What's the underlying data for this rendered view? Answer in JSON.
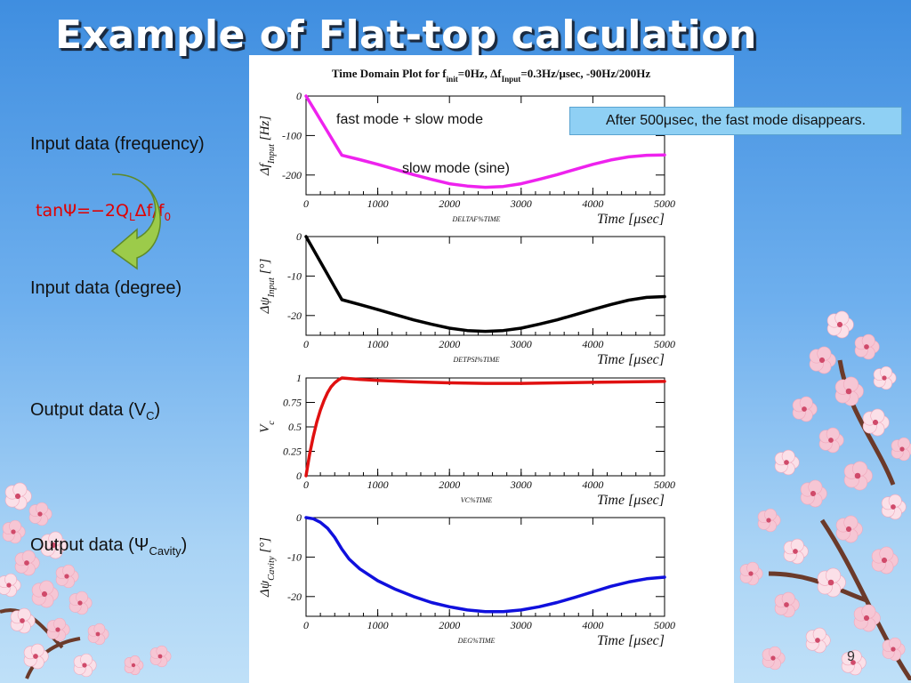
{
  "slide": {
    "title": "Example of Flat-top calculation",
    "page_number": "9",
    "labels": {
      "input_frequency": "Input data (frequency)",
      "input_degree": "Input data (degree)",
      "output_vc": "Output data (V",
      "output_vc_sub": "C",
      "output_vc_close": ")",
      "output_psi": "Output data (Ψ",
      "output_psi_sub": "Cavity",
      "output_psi_close": ")"
    },
    "equation": {
      "main": "tanΨ=−2Q",
      "sub_L": "L",
      "mid": "Δf/f",
      "sub_0": "0"
    },
    "annotations": {
      "fast_slow": "fast mode + slow mode",
      "slow": "slow mode (sine)",
      "callout": "After 500μsec, the fast mode disappears."
    },
    "colors": {
      "accent_title": "#ffffff",
      "equation": "#e00000",
      "callout_bg": "#8fd0f4",
      "arrow_green": "#9ccb4a"
    }
  },
  "chart_data": [
    {
      "type": "line",
      "title": "Time Domain Plot for f",
      "title_sub": "init",
      "title_mid": "=0Hz, Δf",
      "title_sub2": "Input",
      "title_tail": "=0.3Hz/μsec, -90Hz/200Hz",
      "ylabel": "Δf",
      "ylabel_sub": "Input",
      "ylabel_unit": " [Hz]",
      "xlabel": "Time [μsec]",
      "footer": "DELTAF%TIME",
      "xlim": [
        0,
        5000
      ],
      "ylim": [
        -250,
        0
      ],
      "xticks": [
        0,
        1000,
        2000,
        3000,
        4000,
        5000
      ],
      "yticks": [
        0,
        -100,
        -200
      ],
      "color": "#ee22ee",
      "series": [
        {
          "x": [
            0,
            100,
            200,
            300,
            400,
            500,
            750,
            1000,
            1250,
            1500,
            1750,
            2000,
            2250,
            2500,
            2750,
            3000,
            3250,
            3500,
            3750,
            4000,
            4250,
            4500,
            4750,
            5000
          ],
          "y": [
            0,
            -30,
            -60,
            -90,
            -120,
            -150,
            -161,
            -173,
            -186,
            -199,
            -211,
            -222,
            -228,
            -231,
            -229,
            -222,
            -211,
            -199,
            -186,
            -173,
            -162,
            -154,
            -150,
            -149
          ]
        }
      ]
    },
    {
      "type": "line",
      "ylabel": "Δψ",
      "ylabel_sub": "Input",
      "ylabel_unit": " [°]",
      "xlabel": "Time [μsec]",
      "footer": "DETPSI%TIME",
      "xlim": [
        0,
        5000
      ],
      "ylim": [
        -25,
        0
      ],
      "xticks": [
        0,
        1000,
        2000,
        3000,
        4000,
        5000
      ],
      "yticks": [
        0,
        -10,
        -20
      ],
      "color": "#000000",
      "series": [
        {
          "x": [
            0,
            100,
            200,
            300,
            400,
            500,
            750,
            1000,
            1250,
            1500,
            1750,
            2000,
            2250,
            2500,
            2750,
            3000,
            3250,
            3500,
            3750,
            4000,
            4250,
            4500,
            4750,
            5000
          ],
          "y": [
            0,
            -3.2,
            -6.4,
            -9.6,
            -12.8,
            -16,
            -17.2,
            -18.5,
            -19.8,
            -21.1,
            -22.2,
            -23.2,
            -23.8,
            -24,
            -23.8,
            -23.2,
            -22.2,
            -21.1,
            -19.8,
            -18.5,
            -17.2,
            -16.1,
            -15.4,
            -15.2
          ]
        }
      ]
    },
    {
      "type": "line",
      "ylabel": "V",
      "ylabel_sub": "c",
      "ylabel_unit": "",
      "xlabel": "Time [μsec]",
      "footer": "VC%TIME",
      "xlim": [
        0,
        5000
      ],
      "ylim": [
        0,
        1
      ],
      "xticks": [
        0,
        1000,
        2000,
        3000,
        4000,
        5000
      ],
      "yticks": [
        0,
        0.25,
        0.5,
        0.75,
        1
      ],
      "color": "#e01010",
      "series": [
        {
          "x": [
            0,
            50,
            100,
            150,
            200,
            250,
            300,
            350,
            400,
            450,
            500,
            750,
            1000,
            1500,
            2000,
            2500,
            3000,
            3500,
            4000,
            4500,
            5000
          ],
          "y": [
            0,
            0.22,
            0.4,
            0.55,
            0.67,
            0.77,
            0.85,
            0.91,
            0.95,
            0.98,
            1,
            0.985,
            0.975,
            0.96,
            0.95,
            0.945,
            0.945,
            0.95,
            0.955,
            0.96,
            0.965
          ]
        }
      ]
    },
    {
      "type": "line",
      "ylabel": "Δψ",
      "ylabel_sub": "Cavity",
      "ylabel_unit": " [°]",
      "xlabel": "Time [μsec]",
      "footer": "DEG%TIME",
      "xlim": [
        0,
        5000
      ],
      "ylim": [
        -25,
        0
      ],
      "xticks": [
        0,
        1000,
        2000,
        3000,
        4000,
        5000
      ],
      "yticks": [
        0,
        -10,
        -20
      ],
      "color": "#1010dd",
      "series": [
        {
          "x": [
            0,
            100,
            200,
            300,
            400,
            500,
            600,
            750,
            1000,
            1250,
            1500,
            1750,
            2000,
            2250,
            2500,
            2750,
            3000,
            3250,
            3500,
            3750,
            4000,
            4250,
            4500,
            4750,
            5000
          ],
          "y": [
            0,
            -0.3,
            -1.2,
            -2.7,
            -5,
            -8,
            -10.5,
            -13,
            -16,
            -18.2,
            -20,
            -21.5,
            -22.6,
            -23.4,
            -23.8,
            -23.8,
            -23.4,
            -22.6,
            -21.5,
            -20.2,
            -18.8,
            -17.4,
            -16.3,
            -15.5,
            -15.1
          ]
        }
      ]
    }
  ]
}
